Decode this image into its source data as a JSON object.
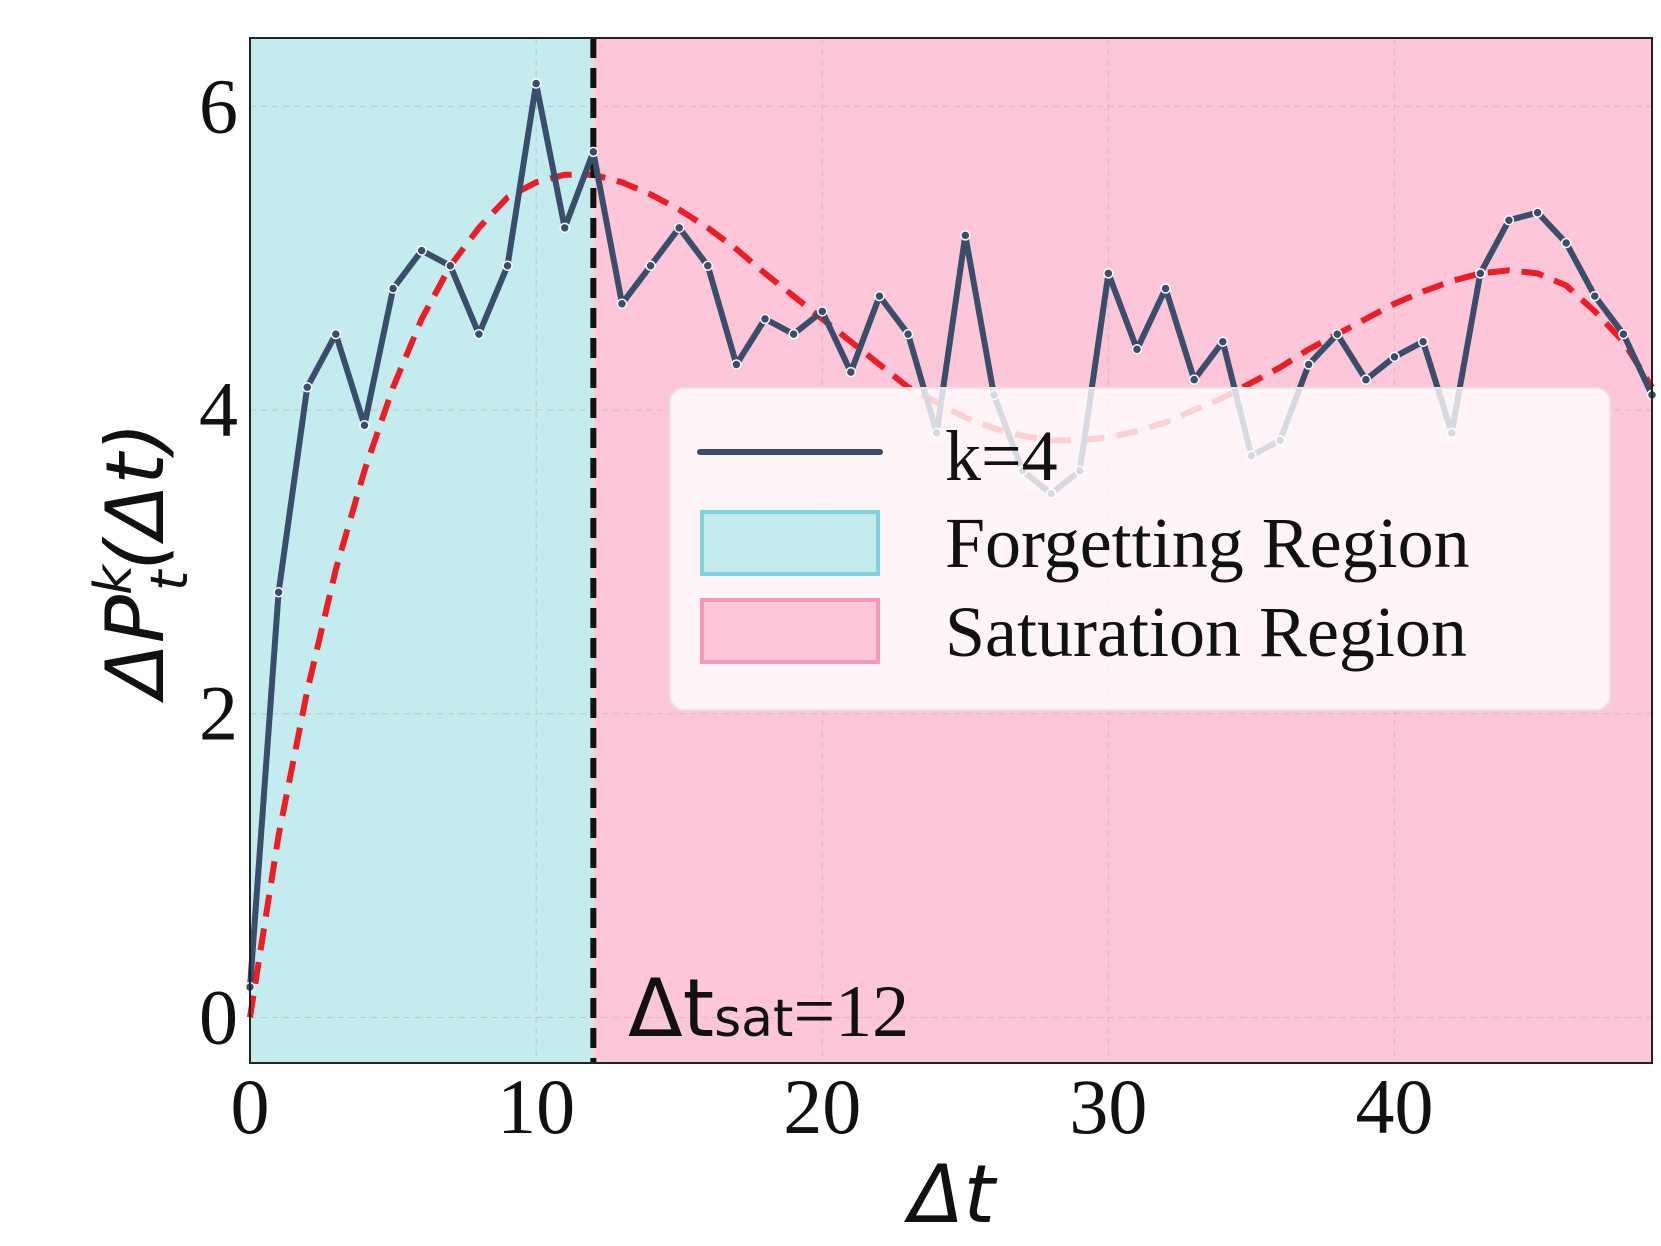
{
  "chart_data": {
    "type": "line",
    "title": "",
    "xlabel": "Δt",
    "ylabel": "ΔP",
    "ylabel_sup": "k",
    "ylabel_sub": "t",
    "ylabel_arg": "(Δt)",
    "xlim": [
      0,
      49
    ],
    "ylim": [
      -0.3,
      6.45
    ],
    "x_ticks": [
      0,
      10,
      20,
      30,
      40
    ],
    "y_ticks": [
      0,
      2,
      4,
      6
    ],
    "grid": true,
    "regions": [
      {
        "name": "Forgetting Region",
        "x_start": 0,
        "x_end": 12,
        "color": "#c4ebee"
      },
      {
        "name": "Saturation Region",
        "x_start": 12,
        "x_end": 49,
        "color": "#fdc7d9"
      }
    ],
    "series": [
      {
        "name": "k=4",
        "color": "#3a4d6b",
        "x": [
          0,
          1,
          2,
          3,
          4,
          5,
          6,
          7,
          8,
          9,
          10,
          11,
          12,
          13,
          14,
          15,
          16,
          17,
          18,
          19,
          20,
          21,
          22,
          23,
          24,
          25,
          26,
          27,
          28,
          29,
          30,
          31,
          32,
          33,
          34,
          35,
          36,
          37,
          38,
          39,
          40,
          41,
          42,
          43,
          44,
          45,
          46,
          47,
          48,
          49
        ],
        "y": [
          0.2,
          2.8,
          4.15,
          4.5,
          3.9,
          4.8,
          5.05,
          4.95,
          4.5,
          4.95,
          6.15,
          5.2,
          5.7,
          4.7,
          4.95,
          5.2,
          4.95,
          4.3,
          4.6,
          4.5,
          4.65,
          4.25,
          4.75,
          4.5,
          3.85,
          5.15,
          4.1,
          3.6,
          3.45,
          3.6,
          4.9,
          4.4,
          4.8,
          4.2,
          4.45,
          3.7,
          3.8,
          4.3,
          4.5,
          4.2,
          4.35,
          4.45,
          3.85,
          4.9,
          5.25,
          5.3,
          5.1,
          4.75,
          4.5,
          4.1
        ]
      }
    ],
    "trend": {
      "color": "#ee1c25",
      "style": "dashed",
      "x": [
        0,
        1,
        2,
        3,
        4,
        5,
        6,
        7,
        8,
        9,
        10,
        11,
        12,
        13,
        14,
        15,
        16,
        17,
        18,
        19,
        20,
        21,
        22,
        23,
        24,
        25,
        26,
        27,
        28,
        29,
        30,
        31,
        32,
        33,
        34,
        35,
        36,
        37,
        38,
        39,
        40,
        41,
        42,
        43,
        44,
        45,
        46,
        47,
        48,
        49
      ],
      "y": [
        0,
        1.2,
        2.15,
        2.95,
        3.6,
        4.15,
        4.6,
        4.95,
        5.2,
        5.4,
        5.5,
        5.55,
        5.55,
        5.5,
        5.42,
        5.32,
        5.2,
        5.06,
        4.9,
        4.75,
        4.6,
        4.45,
        4.3,
        4.15,
        4.05,
        3.95,
        3.88,
        3.83,
        3.8,
        3.8,
        3.82,
        3.86,
        3.92,
        4.0,
        4.08,
        4.18,
        4.28,
        4.4,
        4.5,
        4.6,
        4.7,
        4.78,
        4.85,
        4.9,
        4.92,
        4.9,
        4.82,
        4.65,
        4.45,
        4.15
      ]
    },
    "vline": {
      "x": 12,
      "color": "#111111",
      "style": "dashed"
    },
    "annotation": {
      "math": "Δt",
      "sub": "sat",
      "rest": "=12"
    },
    "legend": {
      "placement": "center-right",
      "entries": [
        {
          "label": "k=4",
          "kind": "line",
          "color": "#3a4d6b"
        },
        {
          "label": "Forgetting Region",
          "kind": "patch",
          "color": "#c4ebee",
          "edge": "#7fd3dd"
        },
        {
          "label": "Saturation Region",
          "kind": "patch",
          "color": "#fdc7d9",
          "edge": "#f59ab6"
        }
      ]
    }
  }
}
